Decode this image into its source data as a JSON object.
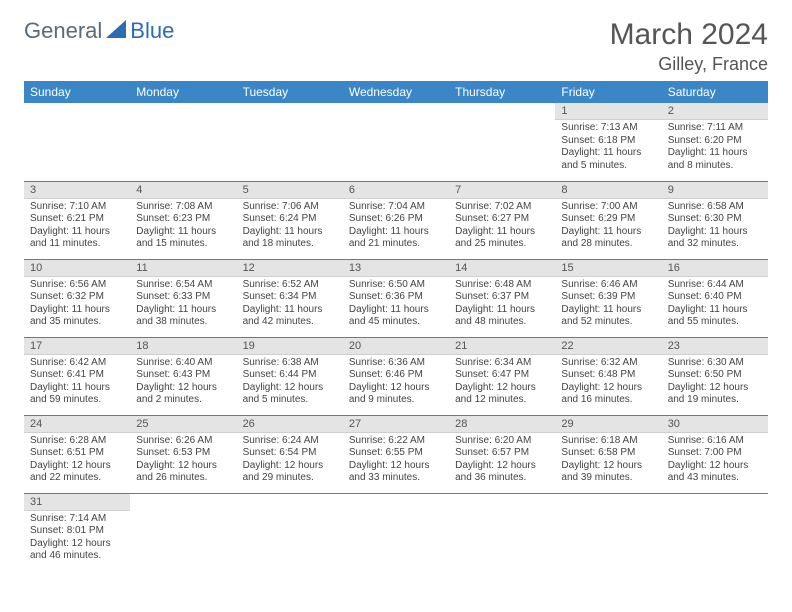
{
  "logo": {
    "part1": "General",
    "part2": "Blue"
  },
  "header": {
    "title": "March 2024",
    "location": "Gilley, France"
  },
  "weekdays": [
    "Sunday",
    "Monday",
    "Tuesday",
    "Wednesday",
    "Thursday",
    "Friday",
    "Saturday"
  ],
  "colors": {
    "header_bg": "#3b86c6",
    "header_text": "#ffffff",
    "daynum_bg": "#e4e4e4",
    "row_divider": "#3b86c6",
    "logo_grey": "#5a6a78",
    "logo_blue": "#2b6db0"
  },
  "weeks": [
    [
      {
        "day": "",
        "sunrise": "",
        "sunset": "",
        "daylight": ""
      },
      {
        "day": "",
        "sunrise": "",
        "sunset": "",
        "daylight": ""
      },
      {
        "day": "",
        "sunrise": "",
        "sunset": "",
        "daylight": ""
      },
      {
        "day": "",
        "sunrise": "",
        "sunset": "",
        "daylight": ""
      },
      {
        "day": "",
        "sunrise": "",
        "sunset": "",
        "daylight": ""
      },
      {
        "day": "1",
        "sunrise": "Sunrise: 7:13 AM",
        "sunset": "Sunset: 6:18 PM",
        "daylight": "Daylight: 11 hours and 5 minutes."
      },
      {
        "day": "2",
        "sunrise": "Sunrise: 7:11 AM",
        "sunset": "Sunset: 6:20 PM",
        "daylight": "Daylight: 11 hours and 8 minutes."
      }
    ],
    [
      {
        "day": "3",
        "sunrise": "Sunrise: 7:10 AM",
        "sunset": "Sunset: 6:21 PM",
        "daylight": "Daylight: 11 hours and 11 minutes."
      },
      {
        "day": "4",
        "sunrise": "Sunrise: 7:08 AM",
        "sunset": "Sunset: 6:23 PM",
        "daylight": "Daylight: 11 hours and 15 minutes."
      },
      {
        "day": "5",
        "sunrise": "Sunrise: 7:06 AM",
        "sunset": "Sunset: 6:24 PM",
        "daylight": "Daylight: 11 hours and 18 minutes."
      },
      {
        "day": "6",
        "sunrise": "Sunrise: 7:04 AM",
        "sunset": "Sunset: 6:26 PM",
        "daylight": "Daylight: 11 hours and 21 minutes."
      },
      {
        "day": "7",
        "sunrise": "Sunrise: 7:02 AM",
        "sunset": "Sunset: 6:27 PM",
        "daylight": "Daylight: 11 hours and 25 minutes."
      },
      {
        "day": "8",
        "sunrise": "Sunrise: 7:00 AM",
        "sunset": "Sunset: 6:29 PM",
        "daylight": "Daylight: 11 hours and 28 minutes."
      },
      {
        "day": "9",
        "sunrise": "Sunrise: 6:58 AM",
        "sunset": "Sunset: 6:30 PM",
        "daylight": "Daylight: 11 hours and 32 minutes."
      }
    ],
    [
      {
        "day": "10",
        "sunrise": "Sunrise: 6:56 AM",
        "sunset": "Sunset: 6:32 PM",
        "daylight": "Daylight: 11 hours and 35 minutes."
      },
      {
        "day": "11",
        "sunrise": "Sunrise: 6:54 AM",
        "sunset": "Sunset: 6:33 PM",
        "daylight": "Daylight: 11 hours and 38 minutes."
      },
      {
        "day": "12",
        "sunrise": "Sunrise: 6:52 AM",
        "sunset": "Sunset: 6:34 PM",
        "daylight": "Daylight: 11 hours and 42 minutes."
      },
      {
        "day": "13",
        "sunrise": "Sunrise: 6:50 AM",
        "sunset": "Sunset: 6:36 PM",
        "daylight": "Daylight: 11 hours and 45 minutes."
      },
      {
        "day": "14",
        "sunrise": "Sunrise: 6:48 AM",
        "sunset": "Sunset: 6:37 PM",
        "daylight": "Daylight: 11 hours and 48 minutes."
      },
      {
        "day": "15",
        "sunrise": "Sunrise: 6:46 AM",
        "sunset": "Sunset: 6:39 PM",
        "daylight": "Daylight: 11 hours and 52 minutes."
      },
      {
        "day": "16",
        "sunrise": "Sunrise: 6:44 AM",
        "sunset": "Sunset: 6:40 PM",
        "daylight": "Daylight: 11 hours and 55 minutes."
      }
    ],
    [
      {
        "day": "17",
        "sunrise": "Sunrise: 6:42 AM",
        "sunset": "Sunset: 6:41 PM",
        "daylight": "Daylight: 11 hours and 59 minutes."
      },
      {
        "day": "18",
        "sunrise": "Sunrise: 6:40 AM",
        "sunset": "Sunset: 6:43 PM",
        "daylight": "Daylight: 12 hours and 2 minutes."
      },
      {
        "day": "19",
        "sunrise": "Sunrise: 6:38 AM",
        "sunset": "Sunset: 6:44 PM",
        "daylight": "Daylight: 12 hours and 5 minutes."
      },
      {
        "day": "20",
        "sunrise": "Sunrise: 6:36 AM",
        "sunset": "Sunset: 6:46 PM",
        "daylight": "Daylight: 12 hours and 9 minutes."
      },
      {
        "day": "21",
        "sunrise": "Sunrise: 6:34 AM",
        "sunset": "Sunset: 6:47 PM",
        "daylight": "Daylight: 12 hours and 12 minutes."
      },
      {
        "day": "22",
        "sunrise": "Sunrise: 6:32 AM",
        "sunset": "Sunset: 6:48 PM",
        "daylight": "Daylight: 12 hours and 16 minutes."
      },
      {
        "day": "23",
        "sunrise": "Sunrise: 6:30 AM",
        "sunset": "Sunset: 6:50 PM",
        "daylight": "Daylight: 12 hours and 19 minutes."
      }
    ],
    [
      {
        "day": "24",
        "sunrise": "Sunrise: 6:28 AM",
        "sunset": "Sunset: 6:51 PM",
        "daylight": "Daylight: 12 hours and 22 minutes."
      },
      {
        "day": "25",
        "sunrise": "Sunrise: 6:26 AM",
        "sunset": "Sunset: 6:53 PM",
        "daylight": "Daylight: 12 hours and 26 minutes."
      },
      {
        "day": "26",
        "sunrise": "Sunrise: 6:24 AM",
        "sunset": "Sunset: 6:54 PM",
        "daylight": "Daylight: 12 hours and 29 minutes."
      },
      {
        "day": "27",
        "sunrise": "Sunrise: 6:22 AM",
        "sunset": "Sunset: 6:55 PM",
        "daylight": "Daylight: 12 hours and 33 minutes."
      },
      {
        "day": "28",
        "sunrise": "Sunrise: 6:20 AM",
        "sunset": "Sunset: 6:57 PM",
        "daylight": "Daylight: 12 hours and 36 minutes."
      },
      {
        "day": "29",
        "sunrise": "Sunrise: 6:18 AM",
        "sunset": "Sunset: 6:58 PM",
        "daylight": "Daylight: 12 hours and 39 minutes."
      },
      {
        "day": "30",
        "sunrise": "Sunrise: 6:16 AM",
        "sunset": "Sunset: 7:00 PM",
        "daylight": "Daylight: 12 hours and 43 minutes."
      }
    ],
    [
      {
        "day": "31",
        "sunrise": "Sunrise: 7:14 AM",
        "sunset": "Sunset: 8:01 PM",
        "daylight": "Daylight: 12 hours and 46 minutes."
      },
      {
        "day": "",
        "sunrise": "",
        "sunset": "",
        "daylight": ""
      },
      {
        "day": "",
        "sunrise": "",
        "sunset": "",
        "daylight": ""
      },
      {
        "day": "",
        "sunrise": "",
        "sunset": "",
        "daylight": ""
      },
      {
        "day": "",
        "sunrise": "",
        "sunset": "",
        "daylight": ""
      },
      {
        "day": "",
        "sunrise": "",
        "sunset": "",
        "daylight": ""
      },
      {
        "day": "",
        "sunrise": "",
        "sunset": "",
        "daylight": ""
      }
    ]
  ]
}
